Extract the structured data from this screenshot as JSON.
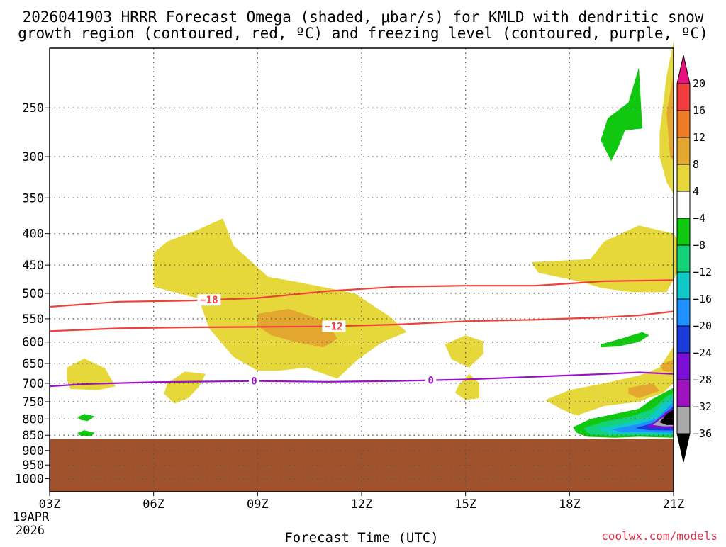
{
  "title": {
    "line1": "2026041903 HRRR Forecast Omega (shaded, μbar/s) for KMLD with dendritic snow",
    "line2": "growth region (contoured, red, ºC) and freezing level (contoured, purple, ºC)"
  },
  "credit": "coolwx.com/models",
  "colors": {
    "terrain": "#a0522d",
    "dgz_line": "#f0403a",
    "freezing_line": "#9a10c8",
    "grid": "#555555",
    "credit": "#e0304a"
  },
  "chart_data": {
    "type": "heatmap",
    "x_axis": {
      "label": "Forecast Time (UTC)",
      "range_hours": [
        3,
        21
      ],
      "ticks": [
        {
          "hour": 3,
          "label": "03Z"
        },
        {
          "hour": 6,
          "label": "06Z"
        },
        {
          "hour": 9,
          "label": "09Z"
        },
        {
          "hour": 12,
          "label": "12Z"
        },
        {
          "hour": 15,
          "label": "15Z"
        },
        {
          "hour": 18,
          "label": "18Z"
        },
        {
          "hour": 21,
          "label": "21Z"
        }
      ],
      "date_label": [
        "19APR",
        "2026"
      ]
    },
    "y_axis": {
      "unit": "hPa",
      "range": [
        1050,
        200
      ],
      "ticks": [
        250,
        300,
        350,
        400,
        450,
        500,
        550,
        600,
        650,
        700,
        750,
        800,
        850,
        900,
        950,
        1000
      ],
      "grid": true
    },
    "terrain_top_hPa": 862,
    "colorbar": {
      "unit": "μbar/s",
      "bins": [
        {
          "from": 16,
          "to": 20,
          "color": "#f03c3c"
        },
        {
          "from": 12,
          "to": 16,
          "color": "#ee7a24"
        },
        {
          "from": 8,
          "to": 12,
          "color": "#e3a72f"
        },
        {
          "from": 4,
          "to": 8,
          "color": "#e6d83a"
        },
        {
          "from": -4,
          "to": 4,
          "color": "#ffffff"
        },
        {
          "from": -8,
          "to": -4,
          "color": "#10c810"
        },
        {
          "from": -12,
          "to": -8,
          "color": "#14d27a"
        },
        {
          "from": -16,
          "to": -12,
          "color": "#10c8c8"
        },
        {
          "from": -20,
          "to": -16,
          "color": "#1e90ff"
        },
        {
          "from": -24,
          "to": -20,
          "color": "#1a3adb"
        },
        {
          "from": -28,
          "to": -24,
          "color": "#7a10d8"
        },
        {
          "from": -32,
          "to": -28,
          "color": "#a012c0"
        },
        {
          "from": -36,
          "to": -32,
          "color": "#a8a8a8"
        }
      ],
      "top_cap_color": "#e8107e",
      "bottom_cap_color": "#000000",
      "tick_labels": [
        "20",
        "16",
        "12",
        "8",
        "4",
        "−4",
        "−8",
        "−12",
        "−16",
        "−20",
        "−24",
        "−28",
        "−32",
        "−36"
      ]
    },
    "contours": [
      {
        "name": "-18ºC isotherm",
        "label": "−18",
        "kind": "dendritic",
        "label_at_hour": 7.6,
        "points": [
          [
            3,
            526
          ],
          [
            5,
            516
          ],
          [
            7,
            514
          ],
          [
            9,
            509
          ],
          [
            11,
            496
          ],
          [
            13,
            488
          ],
          [
            15,
            486
          ],
          [
            17,
            486
          ],
          [
            19,
            478
          ],
          [
            21,
            476
          ]
        ]
      },
      {
        "name": "-12ºC isotherm",
        "label": "−12",
        "kind": "dendritic",
        "label_at_hour": 11.2,
        "points": [
          [
            3,
            576
          ],
          [
            5,
            570
          ],
          [
            7,
            568
          ],
          [
            9,
            567
          ],
          [
            11,
            566
          ],
          [
            13,
            562
          ],
          [
            15,
            555
          ],
          [
            17,
            552
          ],
          [
            19,
            547
          ],
          [
            20,
            543
          ],
          [
            21,
            535
          ]
        ]
      },
      {
        "name": "0ºC isotherm",
        "label": "0",
        "kind": "freezing",
        "label_at_hours": [
          8.9,
          14.0
        ],
        "points": [
          [
            3,
            708
          ],
          [
            4,
            702
          ],
          [
            6,
            697
          ],
          [
            8,
            695
          ],
          [
            9,
            694
          ],
          [
            11,
            696
          ],
          [
            13,
            694
          ],
          [
            15,
            690
          ],
          [
            17,
            683
          ],
          [
            19,
            676
          ],
          [
            20,
            672
          ],
          [
            21,
            676
          ]
        ]
      }
    ],
    "shaded_regions": [
      {
        "omega_bin": "4 to 8",
        "color": "#e6d83a",
        "points": [
          [
            6.0,
            430
          ],
          [
            6.4,
            412
          ],
          [
            7.2,
            396
          ],
          [
            8.0,
            378
          ],
          [
            8.3,
            418
          ],
          [
            9.3,
            470
          ],
          [
            10.2,
            480
          ],
          [
            11.8,
            500
          ],
          [
            12.8,
            545
          ],
          [
            13.3,
            578
          ],
          [
            12.6,
            600
          ],
          [
            11.9,
            640
          ],
          [
            11.3,
            688
          ],
          [
            10.4,
            660
          ],
          [
            9.6,
            668
          ],
          [
            9.0,
            668
          ],
          [
            8.3,
            634
          ],
          [
            7.6,
            570
          ],
          [
            7.3,
            510
          ],
          [
            6.0,
            488
          ]
        ]
      },
      {
        "omega_bin": "8 to 12",
        "color": "#e3a72f",
        "points": [
          [
            9.0,
            540
          ],
          [
            9.9,
            530
          ],
          [
            11.0,
            556
          ],
          [
            11.3,
            592
          ],
          [
            10.9,
            612
          ],
          [
            10.1,
            600
          ],
          [
            9.4,
            585
          ],
          [
            9.0,
            565
          ]
        ]
      },
      {
        "omega_bin": "4 to 8",
        "color": "#e6d83a",
        "points": [
          [
            3.5,
            660
          ],
          [
            4.0,
            638
          ],
          [
            4.6,
            662
          ],
          [
            4.9,
            708
          ],
          [
            4.4,
            718
          ],
          [
            3.6,
            715
          ],
          [
            3.5,
            690
          ]
        ]
      },
      {
        "omega_bin": "4 to 8",
        "color": "#e6d83a",
        "points": [
          [
            6.4,
            700
          ],
          [
            6.9,
            670
          ],
          [
            7.5,
            676
          ],
          [
            7.3,
            710
          ],
          [
            7.0,
            740
          ],
          [
            6.6,
            755
          ],
          [
            6.3,
            728
          ]
        ]
      },
      {
        "omega_bin": "4 to 8",
        "color": "#e6d83a",
        "points": [
          [
            14.4,
            605
          ],
          [
            15.0,
            585
          ],
          [
            15.5,
            598
          ],
          [
            15.5,
            628
          ],
          [
            15.1,
            660
          ],
          [
            14.6,
            640
          ]
        ]
      },
      {
        "omega_bin": "4 to 8",
        "color": "#e6d83a",
        "points": [
          [
            14.8,
            705
          ],
          [
            15.1,
            676
          ],
          [
            15.4,
            700
          ],
          [
            15.4,
            740
          ],
          [
            15.0,
            745
          ],
          [
            14.7,
            725
          ]
        ]
      },
      {
        "omega_bin": "4 to 8",
        "color": "#e6d83a",
        "points": [
          [
            16.9,
            445
          ],
          [
            18.6,
            440
          ],
          [
            19.0,
            412
          ],
          [
            20.0,
            388
          ],
          [
            21.0,
            400
          ],
          [
            21.4,
            432
          ],
          [
            20.8,
            498
          ],
          [
            19.8,
            498
          ],
          [
            18.9,
            490
          ],
          [
            18.4,
            480
          ],
          [
            17.1,
            463
          ]
        ]
      },
      {
        "omega_bin": "4 to 8",
        "color": "#e6d83a",
        "points": [
          [
            20.6,
            275
          ],
          [
            20.8,
            222
          ],
          [
            21.0,
            195
          ],
          [
            21.0,
            345
          ],
          [
            20.8,
            330
          ],
          [
            20.6,
            300
          ]
        ]
      },
      {
        "omega_bin": "8 to 12",
        "color": "#e3a72f",
        "points": [
          [
            20.8,
            255
          ],
          [
            21.0,
            220
          ],
          [
            21.0,
            305
          ],
          [
            20.9,
            300
          ]
        ]
      },
      {
        "omega_bin": "4 to 8",
        "color": "#e6d83a",
        "points": [
          [
            17.3,
            745
          ],
          [
            18.0,
            718
          ],
          [
            19.0,
            700
          ],
          [
            20.0,
            680
          ],
          [
            20.6,
            660
          ],
          [
            21.0,
            610
          ],
          [
            21.0,
            700
          ],
          [
            20.7,
            725
          ],
          [
            20.0,
            750
          ],
          [
            19.0,
            762
          ],
          [
            18.2,
            790
          ],
          [
            17.7,
            768
          ]
        ]
      },
      {
        "omega_bin": "8 to 12",
        "color": "#e3a72f",
        "points": [
          [
            19.7,
            712
          ],
          [
            20.4,
            700
          ],
          [
            20.6,
            720
          ],
          [
            20.0,
            740
          ],
          [
            19.7,
            728
          ]
        ]
      },
      {
        "omega_bin": "8 to 12",
        "color": "#e3a72f",
        "points": [
          [
            20.6,
            655
          ],
          [
            21.0,
            640
          ],
          [
            21.0,
            672
          ],
          [
            20.7,
            668
          ]
        ]
      },
      {
        "omega_bin": "-8 to -4",
        "color": "#10c810",
        "points": [
          [
            18.1,
            825
          ],
          [
            18.6,
            800
          ],
          [
            19.3,
            785
          ],
          [
            20.0,
            770
          ],
          [
            20.4,
            742
          ],
          [
            21.0,
            712
          ],
          [
            21.0,
            858
          ],
          [
            20.0,
            855
          ],
          [
            19.3,
            858
          ],
          [
            18.5,
            855
          ],
          [
            18.2,
            842
          ]
        ]
      },
      {
        "omega_bin": "-12 to -8",
        "color": "#14d27a",
        "points": [
          [
            18.4,
            828
          ],
          [
            19.0,
            808
          ],
          [
            19.8,
            792
          ],
          [
            20.4,
            770
          ],
          [
            20.8,
            735
          ],
          [
            21.0,
            725
          ],
          [
            21.0,
            852
          ],
          [
            20.0,
            850
          ],
          [
            19.2,
            852
          ],
          [
            18.6,
            848
          ]
        ]
      },
      {
        "omega_bin": "-16 to -12",
        "color": "#10c8c8",
        "points": [
          [
            18.8,
            830
          ],
          [
            19.6,
            812
          ],
          [
            20.3,
            795
          ],
          [
            20.7,
            755
          ],
          [
            21.0,
            738
          ],
          [
            21.0,
            848
          ],
          [
            20.0,
            846
          ],
          [
            19.2,
            845
          ]
        ]
      },
      {
        "omega_bin": "-20 to -16",
        "color": "#1e90ff",
        "points": [
          [
            19.2,
            832
          ],
          [
            20.0,
            815
          ],
          [
            20.5,
            800
          ],
          [
            20.9,
            760
          ],
          [
            21.0,
            750
          ],
          [
            21.0,
            842
          ],
          [
            20.1,
            840
          ],
          [
            19.5,
            840
          ]
        ]
      },
      {
        "omega_bin": "-24 to -20",
        "color": "#1a3adb",
        "points": [
          [
            19.9,
            828
          ],
          [
            20.4,
            812
          ],
          [
            20.7,
            790
          ],
          [
            21.0,
            762
          ],
          [
            21.0,
            835
          ],
          [
            20.3,
            834
          ]
        ]
      },
      {
        "omega_bin": "-28 to -24",
        "color": "#7a10d8",
        "points": [
          [
            20.2,
            824
          ],
          [
            20.5,
            805
          ],
          [
            20.8,
            778
          ],
          [
            21.0,
            770
          ],
          [
            21.0,
            828
          ],
          [
            20.6,
            828
          ]
        ]
      },
      {
        "omega_bin": "-36 to -32",
        "color": "#a8a8a8",
        "points": [
          [
            20.4,
            818
          ],
          [
            20.7,
            795
          ],
          [
            21.0,
            775
          ],
          [
            21.0,
            822
          ],
          [
            20.7,
            822
          ]
        ]
      },
      {
        "omega_bin": "< -36",
        "color": "#000000",
        "points": [
          [
            20.6,
            810
          ],
          [
            20.8,
            785
          ],
          [
            21.0,
            772
          ],
          [
            21.0,
            818
          ],
          [
            20.8,
            818
          ]
        ]
      },
      {
        "omega_bin": "-8 to -4",
        "color": "#10c810",
        "points": [
          [
            19.1,
            260
          ],
          [
            19.7,
            245
          ],
          [
            20.0,
            215
          ],
          [
            20.1,
            270
          ],
          [
            19.6,
            272
          ],
          [
            19.4,
            290
          ],
          [
            19.2,
            305
          ],
          [
            18.9,
            282
          ]
        ]
      },
      {
        "omega_bin": "-8 to -4",
        "color": "#10c810",
        "points": [
          [
            18.9,
            605
          ],
          [
            19.5,
            592
          ],
          [
            20.1,
            578
          ],
          [
            20.3,
            585
          ],
          [
            20.0,
            600
          ],
          [
            19.4,
            610
          ],
          [
            18.9,
            612
          ]
        ]
      },
      {
        "omega_bin": "-8 to -4",
        "color": "#10c810",
        "points": [
          [
            3.8,
            795
          ],
          [
            4.0,
            785
          ],
          [
            4.3,
            792
          ],
          [
            4.1,
            806
          ],
          [
            3.9,
            803
          ]
        ]
      },
      {
        "omega_bin": "-8 to -4",
        "color": "#10c810",
        "points": [
          [
            3.8,
            843
          ],
          [
            4.0,
            834
          ],
          [
            4.3,
            842
          ],
          [
            4.2,
            853
          ],
          [
            3.9,
            852
          ]
        ]
      }
    ]
  }
}
